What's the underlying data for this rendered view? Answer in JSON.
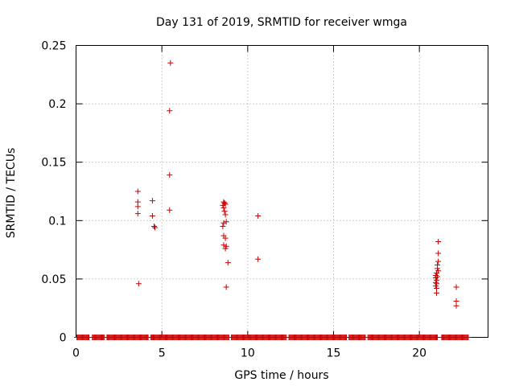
{
  "chart_data": {
    "type": "scatter",
    "title": "Day 131 of 2019, SRMTID for receiver wmga",
    "xlabel": "GPS time / hours",
    "ylabel": "SRMTID / TECUs",
    "xlim": [
      0,
      24
    ],
    "ylim": [
      0,
      0.25
    ],
    "x_ticks": [
      0,
      5,
      10,
      15,
      20
    ],
    "y_ticks": [
      0,
      0.05,
      0.1,
      0.15,
      0.2,
      0.25
    ],
    "x_tick_labels": [
      "0",
      "5",
      "10",
      "15",
      "20"
    ],
    "y_tick_labels": [
      "0",
      "0.05",
      "0.1",
      "0.15",
      "0.2",
      "0.25"
    ],
    "grid": true,
    "marker": "plus",
    "series": [
      {
        "color": "#cc0000",
        "baseline": {
          "y": 0,
          "x_from": 0.05,
          "x_to": 22.85,
          "step": 0.05,
          "gaps": [
            [
              0.8,
              0.95
            ],
            [
              1.7,
              1.8
            ],
            [
              4.2,
              4.3
            ],
            [
              8.9,
              9.0
            ],
            [
              12.3,
              12.4
            ],
            [
              15.8,
              15.9
            ],
            [
              16.9,
              17.0
            ],
            [
              21.1,
              21.3
            ]
          ]
        },
        "points": [
          [
            3.6,
            0.125
          ],
          [
            3.6,
            0.116
          ],
          [
            3.6,
            0.112
          ],
          [
            3.6,
            0.106
          ],
          [
            3.65,
            0.046
          ],
          [
            4.45,
            0.117
          ],
          [
            4.45,
            0.104
          ],
          [
            4.55,
            0.095
          ],
          [
            4.6,
            0.094
          ],
          [
            5.5,
            0.235
          ],
          [
            5.45,
            0.194
          ],
          [
            5.45,
            0.139
          ],
          [
            5.45,
            0.109
          ],
          [
            8.55,
            0.113
          ],
          [
            8.6,
            0.116
          ],
          [
            8.65,
            0.115
          ],
          [
            8.7,
            0.114
          ],
          [
            8.6,
            0.111
          ],
          [
            8.65,
            0.108
          ],
          [
            8.7,
            0.105
          ],
          [
            8.6,
            0.098
          ],
          [
            8.75,
            0.099
          ],
          [
            8.55,
            0.095
          ],
          [
            8.6,
            0.087
          ],
          [
            8.7,
            0.085
          ],
          [
            8.6,
            0.079
          ],
          [
            8.75,
            0.078
          ],
          [
            8.7,
            0.076
          ],
          [
            8.85,
            0.064
          ],
          [
            8.75,
            0.043
          ],
          [
            10.6,
            0.104
          ],
          [
            10.6,
            0.067
          ],
          [
            20.95,
            0.053
          ],
          [
            21.0,
            0.055
          ],
          [
            20.95,
            0.051
          ],
          [
            21.0,
            0.049
          ],
          [
            20.95,
            0.047
          ],
          [
            21.0,
            0.046
          ],
          [
            20.95,
            0.044
          ],
          [
            21.0,
            0.042
          ],
          [
            21.0,
            0.038
          ],
          [
            21.05,
            0.062
          ],
          [
            21.1,
            0.065
          ],
          [
            21.05,
            0.059
          ],
          [
            21.1,
            0.072
          ],
          [
            21.1,
            0.082
          ],
          [
            21.05,
            0.052
          ],
          [
            21.1,
            0.057
          ],
          [
            22.15,
            0.043
          ],
          [
            22.15,
            0.031
          ],
          [
            22.15,
            0.027
          ]
        ]
      }
    ]
  }
}
